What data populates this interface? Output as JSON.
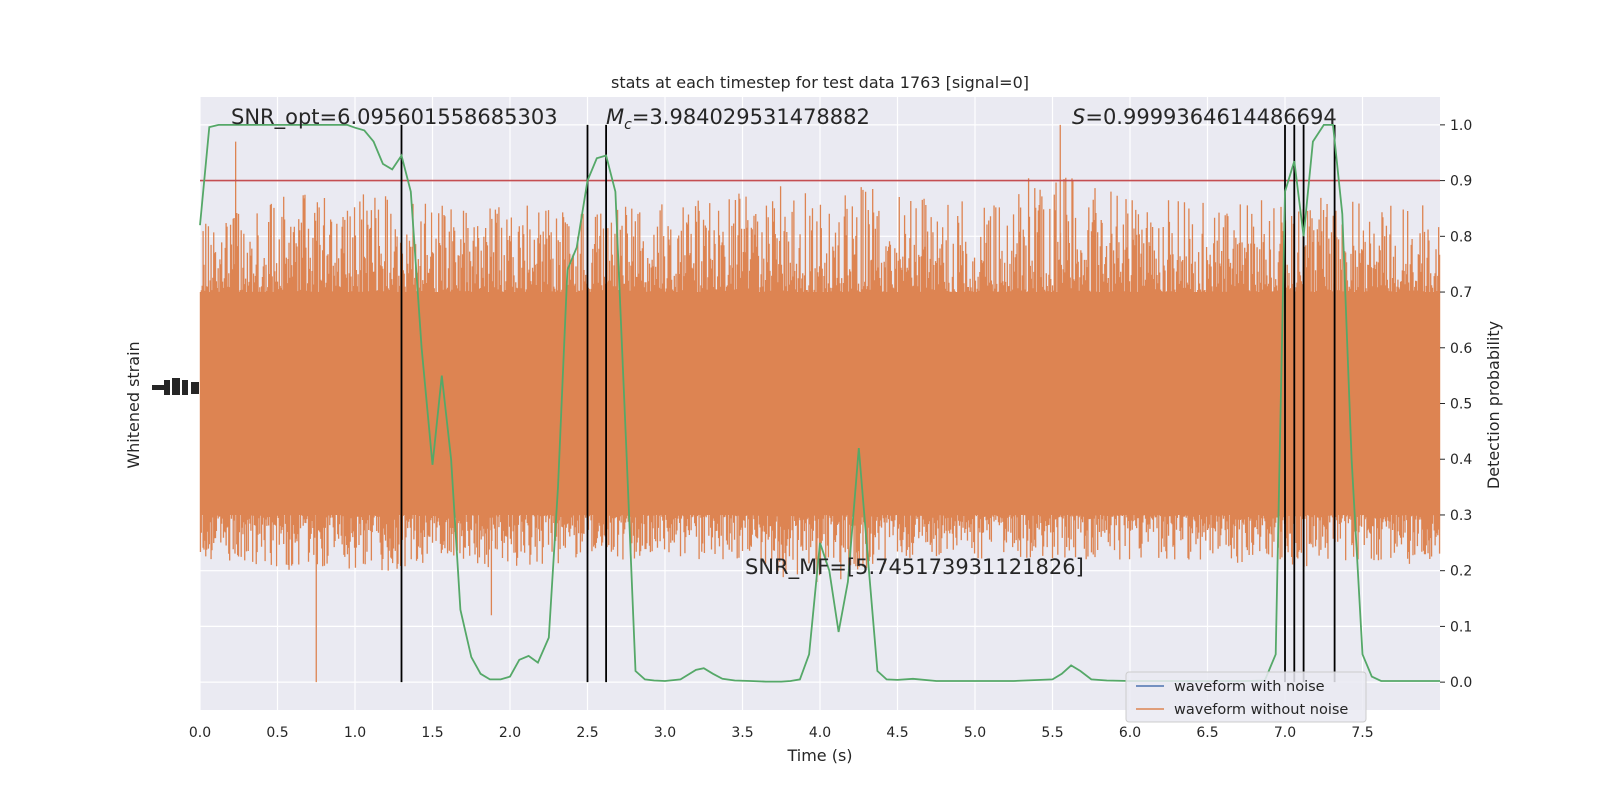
{
  "chart_data": {
    "type": "line",
    "title": "stats at each timestep for test data 1763 [signal=0]",
    "xlabel": "Time (s)",
    "ylabel_left": "Whitened strain",
    "ylabel_right": "Detection probability",
    "xlim": [
      0,
      8
    ],
    "ylim_right": [
      -0.05,
      1.05
    ],
    "x_ticks": [
      "0.0",
      "0.5",
      "1.0",
      "1.5",
      "2.0",
      "2.5",
      "3.0",
      "3.5",
      "4.0",
      "4.5",
      "5.0",
      "5.5",
      "6.0",
      "6.5",
      "7.0",
      "7.5"
    ],
    "y_ticks_right": [
      "0.0",
      "0.1",
      "0.2",
      "0.3",
      "0.4",
      "0.5",
      "0.6",
      "0.7",
      "0.8",
      "0.9",
      "1.0"
    ],
    "grid": true,
    "legend_position": "lower-right",
    "annotations": {
      "snr_opt": "SNR_opt=6.095601558685303",
      "mc_symbol": "M",
      "mc_sub": "c",
      "mc_value": "=3.984029531478882",
      "s_symbol": "S",
      "s_value": "=0.9999364614486694",
      "snr_mf": "SNR_MF=[5.745173931121826]"
    },
    "threshold": 0.9,
    "vertical_markers": [
      1.3,
      2.5,
      2.62,
      7.0,
      7.06,
      7.12,
      7.32
    ],
    "series": [
      {
        "name": "waveform with noise",
        "color": "#4c72b0"
      },
      {
        "name": "waveform without noise",
        "color": "#dd8452"
      }
    ],
    "detection_probability": {
      "color": "#55a868",
      "x": [
        0.0,
        0.06,
        0.12,
        0.2,
        0.3,
        0.5,
        0.75,
        0.95,
        1.0,
        1.06,
        1.12,
        1.18,
        1.24,
        1.3,
        1.36,
        1.43,
        1.5,
        1.56,
        1.62,
        1.68,
        1.75,
        1.81,
        1.87,
        1.94,
        2.0,
        2.06,
        2.12,
        2.18,
        2.25,
        2.31,
        2.37,
        2.43,
        2.5,
        2.56,
        2.62,
        2.68,
        2.75,
        2.81,
        2.87,
        2.93,
        3.0,
        3.1,
        3.2,
        3.25,
        3.31,
        3.37,
        3.45,
        3.55,
        3.65,
        3.75,
        3.81,
        3.87,
        3.93,
        4.0,
        4.06,
        4.12,
        4.18,
        4.25,
        4.31,
        4.37,
        4.43,
        4.5,
        4.6,
        4.75,
        5.0,
        5.25,
        5.5,
        5.56,
        5.62,
        5.68,
        5.75,
        5.85,
        6.0,
        6.2,
        6.4,
        6.6,
        6.75,
        6.87,
        6.94,
        7.0,
        7.06,
        7.12,
        7.18,
        7.25,
        7.31,
        7.37,
        7.43,
        7.5,
        7.56,
        7.62,
        7.7,
        8.0
      ],
      "y": [
        0.82,
        0.996,
        1.0,
        1.0,
        1.0,
        1.0,
        1.0,
        1.0,
        0.995,
        0.99,
        0.97,
        0.93,
        0.92,
        0.945,
        0.88,
        0.6,
        0.39,
        0.55,
        0.4,
        0.13,
        0.045,
        0.015,
        0.005,
        0.005,
        0.01,
        0.04,
        0.047,
        0.035,
        0.08,
        0.35,
        0.74,
        0.78,
        0.9,
        0.94,
        0.945,
        0.88,
        0.42,
        0.02,
        0.005,
        0.003,
        0.002,
        0.005,
        0.022,
        0.025,
        0.015,
        0.006,
        0.003,
        0.002,
        0.001,
        0.001,
        0.002,
        0.005,
        0.05,
        0.25,
        0.2,
        0.09,
        0.18,
        0.42,
        0.22,
        0.02,
        0.005,
        0.004,
        0.006,
        0.002,
        0.002,
        0.002,
        0.005,
        0.015,
        0.03,
        0.02,
        0.005,
        0.003,
        0.002,
        0.002,
        0.002,
        0.002,
        0.002,
        0.003,
        0.05,
        0.88,
        0.935,
        0.8,
        0.97,
        1.0,
        1.0,
        0.84,
        0.4,
        0.05,
        0.01,
        0.002,
        0.002,
        0.002
      ]
    },
    "strain_noise": {
      "color": "#dd8452",
      "band": [
        0.3,
        0.7
      ],
      "peak_envelope_x": [
        0.0,
        0.5,
        1.0,
        1.3,
        1.5,
        2.0,
        2.5,
        3.0,
        3.5,
        4.0,
        4.5,
        5.0,
        5.5,
        6.0,
        6.5,
        7.0,
        7.5,
        8.0
      ],
      "peak_envelope_hi": [
        0.82,
        0.88,
        0.88,
        0.87,
        0.86,
        0.86,
        0.85,
        0.86,
        0.88,
        0.9,
        0.88,
        0.87,
        0.92,
        0.87,
        0.86,
        0.88,
        0.86,
        0.86
      ],
      "peak_envelope_lo": [
        0.22,
        0.2,
        0.2,
        0.2,
        0.22,
        0.2,
        0.22,
        0.22,
        0.22,
        0.16,
        0.22,
        0.22,
        0.22,
        0.22,
        0.22,
        0.2,
        0.22,
        0.2
      ],
      "extreme_peaks": [
        [
          0.23,
          0.97
        ],
        [
          0.75,
          0.0
        ],
        [
          5.55,
          1.0
        ],
        [
          6.08,
          0.5
        ],
        [
          1.88,
          0.12
        ]
      ]
    }
  }
}
